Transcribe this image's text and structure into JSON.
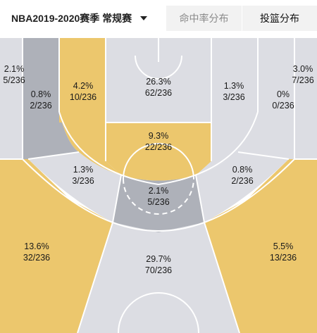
{
  "header": {
    "season_label": "NBA2019-2020赛季 常规赛",
    "tabs": [
      {
        "label": "命中率分布",
        "active": false
      },
      {
        "label": "投篮分布",
        "active": true
      }
    ]
  },
  "colors": {
    "yellow": "#ecc76d",
    "dark_gray": "#aeb1b9",
    "light_gray": "#dcdde3",
    "line": "#ffffff"
  },
  "zones": [
    {
      "id": "left-corner-three",
      "pct": "2.1%",
      "count": "5/236",
      "shade": "light"
    },
    {
      "id": "left-wing-long-two",
      "pct": "0.8%",
      "count": "2/236",
      "shade": "dark"
    },
    {
      "id": "left-lane-mid",
      "pct": "4.2%",
      "count": "10/236",
      "shade": "yellow"
    },
    {
      "id": "paint-upper",
      "pct": "26.3%",
      "count": "62/236",
      "shade": "light"
    },
    {
      "id": "right-lane-mid",
      "pct": "1.3%",
      "count": "3/236",
      "shade": "light"
    },
    {
      "id": "right-wing-long-two",
      "pct": "0%",
      "count": "0/236",
      "shade": "light"
    },
    {
      "id": "right-corner-three",
      "pct": "3.0%",
      "count": "7/236",
      "shade": "light"
    },
    {
      "id": "free-throw-area",
      "pct": "9.3%",
      "count": "22/236",
      "shade": "yellow"
    },
    {
      "id": "left-elbow-long-two",
      "pct": "1.3%",
      "count": "3/236",
      "shade": "light"
    },
    {
      "id": "top-key-long-two",
      "pct": "2.1%",
      "count": "5/236",
      "shade": "dark"
    },
    {
      "id": "right-elbow-long-two",
      "pct": "0.8%",
      "count": "2/236",
      "shade": "light"
    },
    {
      "id": "left-wing-three",
      "pct": "13.6%",
      "count": "32/236",
      "shade": "yellow"
    },
    {
      "id": "top-key-three",
      "pct": "29.7%",
      "count": "70/236",
      "shade": "light"
    },
    {
      "id": "right-wing-three",
      "pct": "5.5%",
      "count": "13/236",
      "shade": "yellow"
    }
  ]
}
